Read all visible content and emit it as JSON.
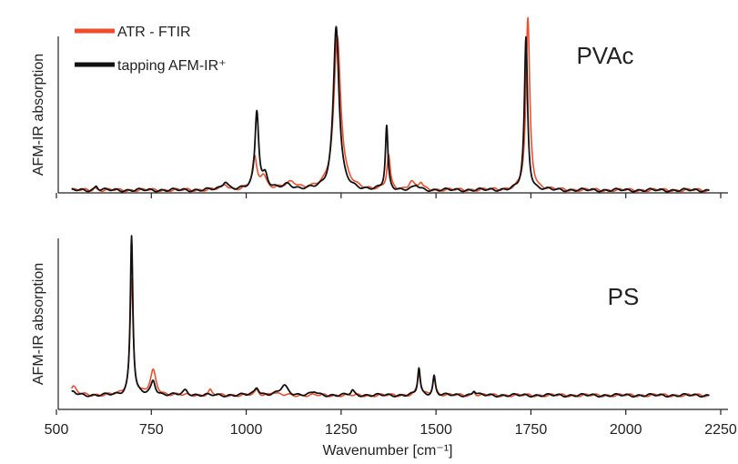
{
  "colors": {
    "atr": "#f04e2a",
    "afm": "#111111",
    "axis": "#222222",
    "background": "#ffffff"
  },
  "legend": {
    "placement": "top-left",
    "items": [
      {
        "label": "ATR - FTIR",
        "color": "#f04e2a"
      },
      {
        "label": "tapping AFM-IR⁺",
        "color": "#111111"
      }
    ]
  },
  "x_axis": {
    "label": "Wavenumber [cm⁻¹]",
    "ticks": [
      "500",
      "750",
      "1000",
      "1250",
      "1500",
      "1750",
      "2000",
      "2250"
    ]
  },
  "chart_data": [
    {
      "type": "line",
      "label": "PVAc",
      "ylabel": "AFM-IR absorption",
      "xlim": [
        500,
        2250
      ],
      "ylim": [
        0,
        1
      ],
      "grid": false,
      "baseline": {
        "ATR - FTIR": 0.005,
        "tapping AFM-IR⁺": 0.005
      },
      "series": [
        {
          "name": "ATR - FTIR",
          "color": "#f04e2a",
          "peaks": [
            {
              "x": 601,
              "y": 0.015,
              "w": 5
            },
            {
              "x": 945,
              "y": 0.03,
              "w": 10
            },
            {
              "x": 1022,
              "y": 0.18,
              "w": 7
            },
            {
              "x": 1045,
              "y": 0.08,
              "w": 10
            },
            {
              "x": 1120,
              "y": 0.04,
              "w": 20
            },
            {
              "x": 1240,
              "y": 0.9,
              "w": 11
            },
            {
              "x": 1375,
              "y": 0.2,
              "w": 5
            },
            {
              "x": 1435,
              "y": 0.05,
              "w": 8
            },
            {
              "x": 1460,
              "y": 0.04,
              "w": 6
            },
            {
              "x": 1742,
              "y": 1.0,
              "w": 6
            }
          ]
        },
        {
          "name": "tapping AFM-IR⁺",
          "color": "#111111",
          "peaks": [
            {
              "x": 605,
              "y": 0.025,
              "w": 5
            },
            {
              "x": 945,
              "y": 0.05,
              "w": 9
            },
            {
              "x": 1028,
              "y": 0.46,
              "w": 6
            },
            {
              "x": 1050,
              "y": 0.08,
              "w": 8
            },
            {
              "x": 1110,
              "y": 0.03,
              "w": 15
            },
            {
              "x": 1237,
              "y": 0.96,
              "w": 9
            },
            {
              "x": 1370,
              "y": 0.37,
              "w": 4
            },
            {
              "x": 1448,
              "y": 0.025,
              "w": 8
            },
            {
              "x": 1737,
              "y": 0.89,
              "w": 5
            }
          ]
        }
      ]
    },
    {
      "type": "line",
      "label": "PS",
      "ylabel": "AFM-IR absorption",
      "xlim": [
        500,
        2250
      ],
      "ylim": [
        0,
        1
      ],
      "grid": false,
      "baseline": {
        "ATR - FTIR": 0.02,
        "tapping AFM-IR⁺": 0.02
      },
      "series": [
        {
          "name": "ATR - FTIR",
          "color": "#f04e2a",
          "peaks": [
            {
              "x": 545,
              "y": 0.05,
              "w": 10
            },
            {
              "x": 698,
              "y": 0.72,
              "w": 5
            },
            {
              "x": 755,
              "y": 0.15,
              "w": 9
            },
            {
              "x": 905,
              "y": 0.03,
              "w": 5
            },
            {
              "x": 1028,
              "y": 0.03,
              "w": 6
            },
            {
              "x": 1070,
              "y": 0.02,
              "w": 10
            },
            {
              "x": 1455,
              "y": 0.13,
              "w": 5
            },
            {
              "x": 1495,
              "y": 0.13,
              "w": 4
            },
            {
              "x": 1600,
              "y": 0.02,
              "w": 5
            }
          ]
        },
        {
          "name": "tapping AFM-IR⁺",
          "color": "#111111",
          "peaks": [
            {
              "x": 545,
              "y": 0.02,
              "w": 8
            },
            {
              "x": 698,
              "y": 1.0,
              "w": 4
            },
            {
              "x": 755,
              "y": 0.09,
              "w": 7
            },
            {
              "x": 840,
              "y": 0.03,
              "w": 8
            },
            {
              "x": 1028,
              "y": 0.05,
              "w": 7
            },
            {
              "x": 1100,
              "y": 0.06,
              "w": 12
            },
            {
              "x": 1180,
              "y": 0.02,
              "w": 8
            },
            {
              "x": 1280,
              "y": 0.03,
              "w": 5
            },
            {
              "x": 1455,
              "y": 0.17,
              "w": 4
            },
            {
              "x": 1495,
              "y": 0.12,
              "w": 4
            },
            {
              "x": 1600,
              "y": 0.03,
              "w": 5
            }
          ]
        }
      ]
    }
  ]
}
